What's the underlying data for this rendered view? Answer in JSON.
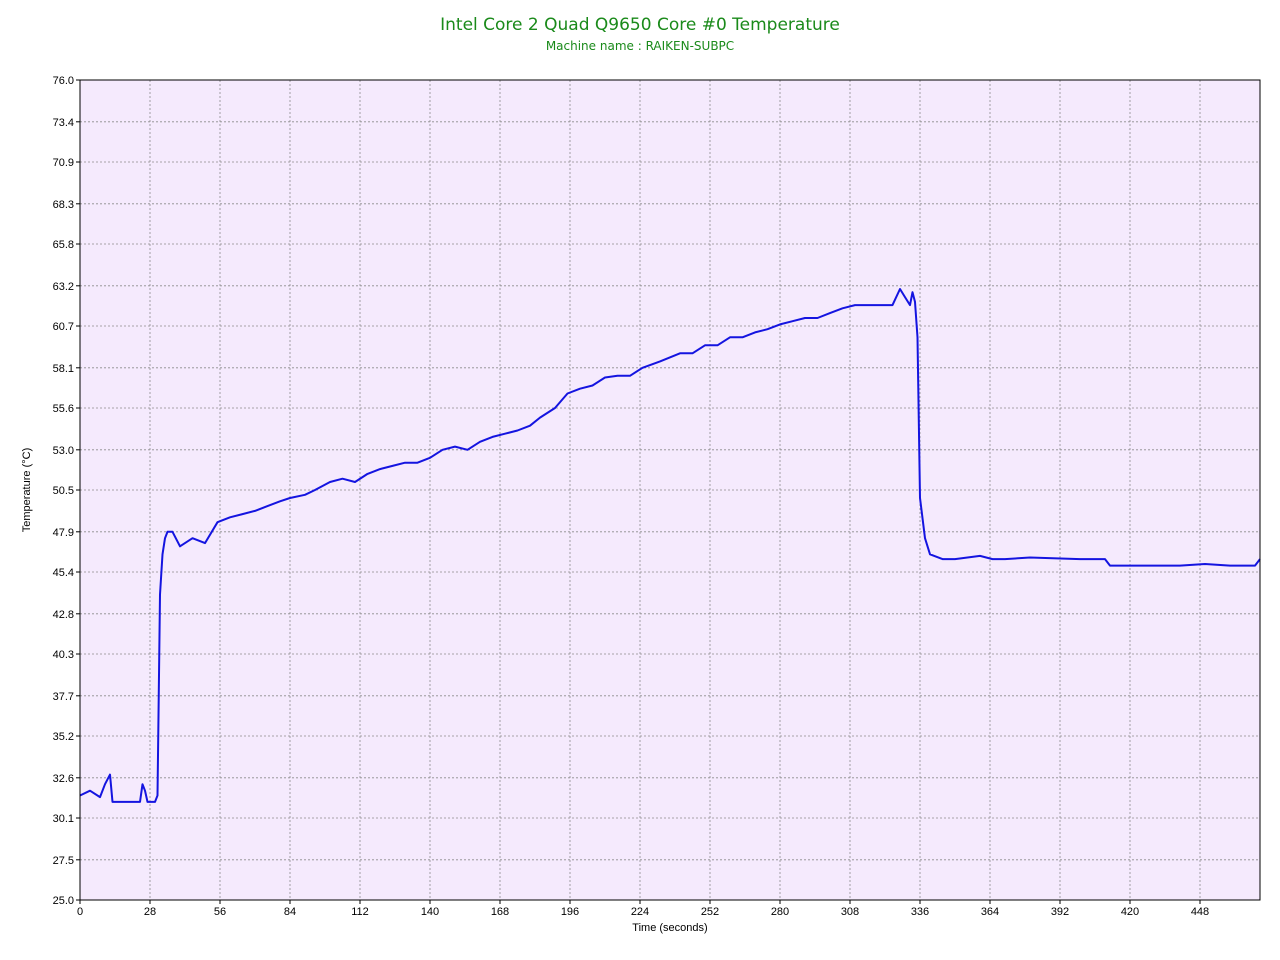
{
  "colors": {
    "plot_background": "#f5eafd",
    "series_line": "#1414e0",
    "title": "#1a8a1a",
    "grid": "#8c8c8c",
    "frame": "#000000"
  },
  "chart_data": {
    "type": "line",
    "title": "Intel Core 2 Quad Q9650 Core #0 Temperature",
    "subtitle": "Machine name : RAIKEN-SUBPC",
    "xlabel": "Time (seconds)",
    "ylabel": "Temperature (°C)",
    "xlim": [
      0,
      472
    ],
    "ylim": [
      25.0,
      76.0
    ],
    "grid": true,
    "x_ticks": [
      0,
      28,
      56,
      84,
      112,
      140,
      168,
      196,
      224,
      252,
      280,
      308,
      336,
      364,
      392,
      420,
      448
    ],
    "y_ticks": [
      "25.0",
      "27.5",
      "30.1",
      "32.6",
      "35.2",
      "37.7",
      "40.3",
      "42.8",
      "45.4",
      "47.9",
      "50.5",
      "53.0",
      "55.6",
      "58.1",
      "60.7",
      "63.2",
      "65.8",
      "68.3",
      "70.9",
      "73.4",
      "76.0"
    ],
    "series": [
      {
        "x": [
          0,
          4,
          8,
          10,
          12,
          13,
          18,
          24,
          25,
          26,
          27,
          30,
          31,
          32,
          33,
          34,
          35,
          37,
          40,
          45,
          50,
          55,
          60,
          65,
          70,
          75,
          80,
          84,
          90,
          94,
          100,
          105,
          110,
          115,
          120,
          125,
          130,
          135,
          140,
          145,
          150,
          155,
          160,
          165,
          170,
          175,
          180,
          184,
          190,
          195,
          200,
          205,
          210,
          215,
          220,
          225,
          232,
          240,
          245,
          250,
          255,
          260,
          265,
          270,
          275,
          280,
          285,
          290,
          295,
          300,
          305,
          310,
          315,
          320,
          325,
          328,
          330,
          332,
          333,
          334,
          335,
          336,
          338,
          340,
          345,
          350,
          355,
          360,
          365,
          370,
          380,
          400,
          410,
          412,
          420,
          430,
          440,
          450,
          460,
          470,
          472
        ],
        "y": [
          31.5,
          31.8,
          31.4,
          32.2,
          32.8,
          31.1,
          31.1,
          31.1,
          32.2,
          31.8,
          31.1,
          31.1,
          31.5,
          44.0,
          46.5,
          47.5,
          47.9,
          47.9,
          47.0,
          47.5,
          47.2,
          48.5,
          48.8,
          49.0,
          49.2,
          49.5,
          49.8,
          50.0,
          50.2,
          50.5,
          51.0,
          51.2,
          51.0,
          51.5,
          51.8,
          52.0,
          52.2,
          52.2,
          52.5,
          53.0,
          53.2,
          53.0,
          53.5,
          53.8,
          54.0,
          54.2,
          54.5,
          55.0,
          55.6,
          56.5,
          56.8,
          57.0,
          57.5,
          57.6,
          57.6,
          58.1,
          58.5,
          59.0,
          59.0,
          59.5,
          59.5,
          60.0,
          60.0,
          60.3,
          60.5,
          60.8,
          61.0,
          61.2,
          61.2,
          61.5,
          61.8,
          62.0,
          62.0,
          62.0,
          62.0,
          63.0,
          62.5,
          62.0,
          62.8,
          62.2,
          60.0,
          50.0,
          47.5,
          46.5,
          46.2,
          46.2,
          46.3,
          46.4,
          46.2,
          46.2,
          46.3,
          46.2,
          46.2,
          45.8,
          45.8,
          45.8,
          45.8,
          45.9,
          45.8,
          45.8,
          46.2
        ]
      }
    ]
  }
}
